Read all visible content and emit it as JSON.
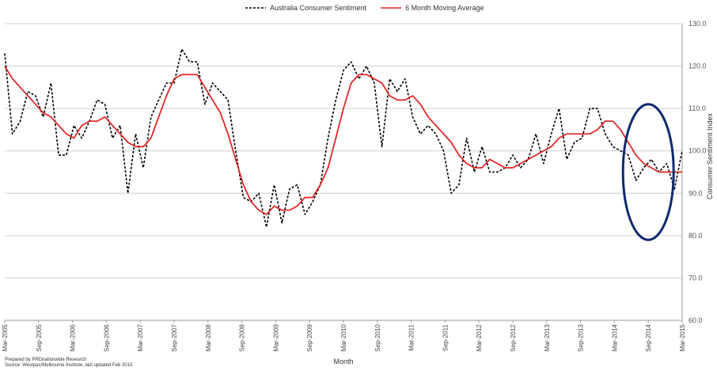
{
  "chart_data": {
    "type": "line",
    "title": "",
    "xlabel": "Month",
    "ylabel": "Consumer Sentiment Index",
    "ylim": [
      60,
      130
    ],
    "y_ticks": [
      "60.0",
      "70.0",
      "80.0",
      "90.0",
      "100.0",
      "110.0",
      "120.0",
      "130.0"
    ],
    "x_tick_labels": [
      "Mar-2005",
      "Sep-2005",
      "Mar-2006",
      "Sep-2006",
      "Mar-2007",
      "Sep-2007",
      "Mar-2008",
      "Sep-2008",
      "Mar-2009",
      "Sep-2009",
      "Mar-2010",
      "Sep-2010",
      "Mar-2011",
      "Sep-2011",
      "Mar-2012",
      "Sep-2012",
      "Mar-2013",
      "Sep-2013",
      "Mar-2014",
      "Sep-2014",
      "Mar-2015"
    ],
    "x_start": "Mar-2005",
    "x_end": "Mar-2015",
    "grid": "horizontal",
    "legend_position": "top",
    "series": [
      {
        "name": "Australia Consumer Sentiment",
        "color": "#000000",
        "style": "dashed",
        "values": [
          123,
          104,
          107,
          114,
          113,
          108,
          116,
          99,
          99,
          106,
          103,
          107,
          112,
          111,
          103,
          106,
          90,
          104,
          96,
          108,
          112,
          116,
          116,
          124,
          121,
          121,
          111,
          116,
          114,
          112,
          100,
          89,
          88,
          90,
          82,
          92,
          83,
          91,
          92,
          85,
          88,
          92,
          103,
          112,
          119,
          121,
          117,
          120,
          116,
          101,
          117,
          114,
          117,
          108,
          104,
          106,
          104,
          100,
          90,
          92,
          103,
          95,
          101,
          95,
          95,
          96,
          99,
          96,
          98,
          104,
          97,
          104,
          110,
          98,
          102,
          103,
          110,
          110,
          104,
          101,
          100,
          99,
          93,
          96,
          98,
          95,
          97,
          91,
          100
        ]
      },
      {
        "name": "6 Month Moving Average",
        "color": "#e02020",
        "style": "solid",
        "values": [
          120,
          117,
          115,
          113,
          111,
          109,
          108,
          106,
          104,
          103,
          106,
          107,
          107,
          108,
          106,
          104,
          102,
          101,
          101,
          103,
          108,
          113,
          117,
          118,
          118,
          118,
          115,
          112,
          109,
          104,
          98,
          92,
          88,
          86,
          85,
          87,
          86,
          86,
          87,
          89,
          89,
          92,
          96,
          103,
          110,
          116,
          118,
          118,
          117,
          116,
          113,
          112,
          112,
          113,
          111,
          108,
          106,
          104,
          102,
          99,
          97,
          96,
          96,
          98,
          97,
          96,
          96,
          97,
          98,
          99,
          100,
          101,
          103,
          104,
          104,
          104,
          104,
          105,
          107,
          107,
          105,
          102,
          99,
          97,
          96,
          95,
          95,
          95,
          95
        ]
      }
    ]
  },
  "footnote": {
    "line1": "Prepared   by  PRDnationwide   Research",
    "line2": "Source:  Westpac/Melbourne   Institute,   last updated    Feb  2015"
  },
  "highlight": {
    "shape": "ellipse",
    "color": "#0d2a6b",
    "around_x": "Sep-2014",
    "around_y_range": [
      79,
      111
    ]
  }
}
